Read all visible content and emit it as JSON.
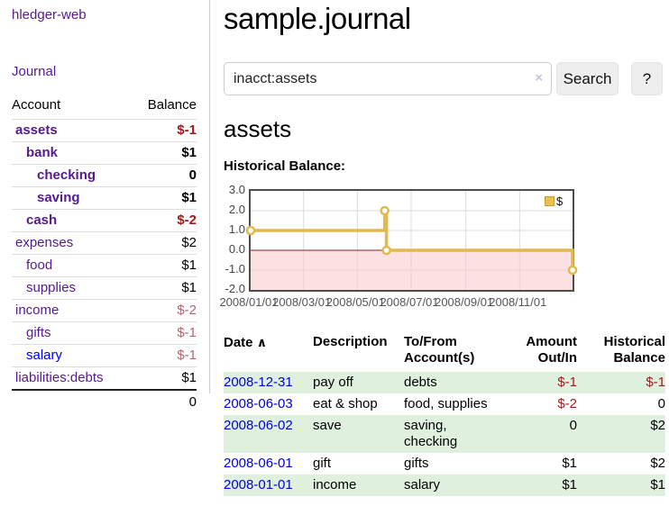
{
  "app": {
    "brand": "hledger-web"
  },
  "colors": {
    "link_purple": "#551a8b",
    "link_blue": "#0000dd",
    "negative_strong": "#9d1b1b",
    "negative_muted": "#b26470",
    "row_green": "#dff0df",
    "series_gold": "#e2b94b"
  },
  "sidebar": {
    "journal_link": "Journal",
    "accounts": {
      "col_account": "Account",
      "col_balance": "Balance",
      "rows": [
        {
          "name": "assets",
          "balance": "$-1",
          "depth": 1,
          "emphasized": true
        },
        {
          "name": "bank",
          "balance": "$1",
          "depth": 2,
          "emphasized": true
        },
        {
          "name": "checking",
          "balance": "0",
          "depth": 3,
          "emphasized": true
        },
        {
          "name": "saving",
          "balance": "$1",
          "depth": 3,
          "emphasized": true
        },
        {
          "name": "cash",
          "balance": "$-2",
          "depth": 2,
          "emphasized": true
        },
        {
          "name": "expenses",
          "balance": "$2",
          "depth": 1,
          "emphasized": false
        },
        {
          "name": "food",
          "balance": "$1",
          "depth": 2,
          "emphasized": false
        },
        {
          "name": "supplies",
          "balance": "$1",
          "depth": 2,
          "emphasized": false
        },
        {
          "name": "income",
          "balance": "$-2",
          "depth": 1,
          "emphasized": false
        },
        {
          "name": "gifts",
          "balance": "$-1",
          "depth": 2,
          "emphasized": false
        },
        {
          "name": "salary",
          "balance": "$-1",
          "depth": 2,
          "emphasized": false,
          "unvisited": true
        },
        {
          "name": "liabilities:debts",
          "balance": "$1",
          "depth": 1,
          "emphasized": false
        }
      ],
      "total": "0"
    }
  },
  "main": {
    "title": "sample.journal",
    "search": {
      "value": "inacct:assets",
      "clear_icon": "×",
      "search_button": "Search",
      "help_button": "?"
    },
    "account_title": "assets",
    "chart_heading": "Historical Balance:"
  },
  "chart_data": {
    "type": "line",
    "step": true,
    "title": "Historical Balance",
    "series": [
      {
        "name": "$",
        "color": "#e2b94b",
        "points": [
          [
            "2008-01-01",
            1
          ],
          [
            "2008-06-01",
            2
          ],
          [
            "2008-06-03",
            0
          ],
          [
            "2008-12-31",
            -1
          ]
        ]
      }
    ],
    "ylim": [
      -2,
      3
    ],
    "yticks": [
      3,
      2,
      1,
      0,
      -1,
      -2
    ],
    "ytick_labels": [
      "3.0",
      "2.0",
      "1.0",
      "0.0",
      "-1.0",
      "-2.0"
    ],
    "xlim": [
      "2008-01-01",
      "2008-12-31"
    ],
    "xticks": [
      "2008/01/01",
      "2008/03/01",
      "2008/05/01",
      "2008/07/01",
      "2008/09/01",
      "2008/11/01"
    ],
    "legend": {
      "label": "$",
      "position": "top-right"
    },
    "grid": true,
    "zero_line_color": "#8b1a1a",
    "negative_region_fill": "#f7c8c8"
  },
  "register": {
    "headers": {
      "date": "Date",
      "sort_icon": "∧",
      "description": "Description",
      "tofrom": "To/From Account(s)",
      "amount": "Amount Out/In",
      "balance": "Historical Balance"
    },
    "rows": [
      {
        "date": "2008-12-31",
        "description": "pay off",
        "accounts": "debts",
        "amount": "$-1",
        "balance": "$-1"
      },
      {
        "date": "2008-06-03",
        "description": "eat & shop",
        "accounts": "food, supplies",
        "amount": "$-2",
        "balance": "0"
      },
      {
        "date": "2008-06-02",
        "description": "save",
        "accounts": "saving, checking",
        "amount": "0",
        "balance": "$2"
      },
      {
        "date": "2008-06-01",
        "description": "gift",
        "accounts": "gifts",
        "amount": "$1",
        "balance": "$2"
      },
      {
        "date": "2008-01-01",
        "description": "income",
        "accounts": "salary",
        "amount": "$1",
        "balance": "$1"
      }
    ]
  }
}
